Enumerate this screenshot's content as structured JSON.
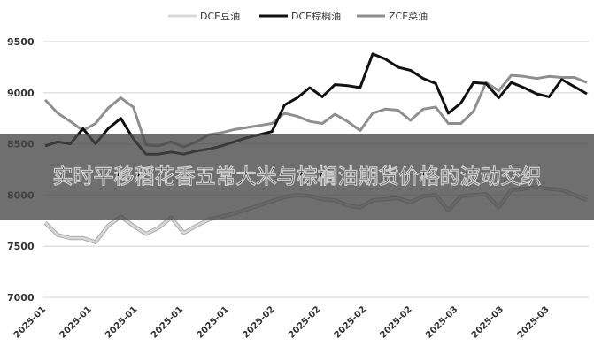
{
  "banner": {
    "title": "实时平移稻花香五常大米与棕榈油期货价格的波动交织"
  },
  "chart_data": {
    "type": "line",
    "title": "",
    "xlabel": "",
    "ylabel": "",
    "ylim": [
      7000,
      9500
    ],
    "yticks": [
      7000,
      7500,
      8000,
      8500,
      9000,
      9500
    ],
    "xtick_labels": [
      "2025-01",
      "2025-01",
      "2025-01",
      "2025-01",
      "2025-01",
      "2025-02",
      "2025-02",
      "2025-02",
      "2025-02",
      "2025-03",
      "2025-03",
      "2025-03"
    ],
    "grid": true,
    "legend_position": "top",
    "series": [
      {
        "name": "DCE豆油",
        "color": "#d8d8d8",
        "values": [
          7730,
          7610,
          7580,
          7580,
          7540,
          7700,
          7790,
          7700,
          7620,
          7680,
          7780,
          7630,
          7700,
          7760,
          7790,
          7820,
          7860,
          7900,
          7940,
          7980,
          8000,
          7990,
          7960,
          7950,
          7900,
          7880,
          7950,
          7960,
          7970,
          7930,
          7990,
          8000,
          7850,
          7990,
          8000,
          8010,
          7880,
          8050,
          8060,
          8080,
          8060,
          8050,
          8000,
          7950
        ]
      },
      {
        "name": "DCE棕榈油",
        "color": "#111111",
        "values": [
          8480,
          8520,
          8500,
          8650,
          8500,
          8650,
          8750,
          8550,
          8400,
          8400,
          8420,
          8400,
          8430,
          8450,
          8480,
          8520,
          8560,
          8590,
          8620,
          8880,
          8950,
          9050,
          8960,
          9080,
          9070,
          9050,
          9380,
          9330,
          9250,
          9220,
          9140,
          9090,
          8800,
          8900,
          9100,
          9090,
          8950,
          9100,
          9050,
          8990,
          8960,
          9130,
          9060,
          8990
        ]
      },
      {
        "name": "ZCE菜油",
        "color": "#8f8f8f",
        "values": [
          8930,
          8800,
          8720,
          8630,
          8700,
          8850,
          8950,
          8860,
          8490,
          8480,
          8520,
          8470,
          8520,
          8590,
          8610,
          8640,
          8660,
          8680,
          8700,
          8800,
          8770,
          8720,
          8700,
          8790,
          8720,
          8630,
          8800,
          8840,
          8830,
          8730,
          8840,
          8860,
          8700,
          8700,
          8820,
          9100,
          9020,
          9170,
          9160,
          9140,
          9160,
          9150,
          9150,
          9100
        ]
      }
    ]
  }
}
